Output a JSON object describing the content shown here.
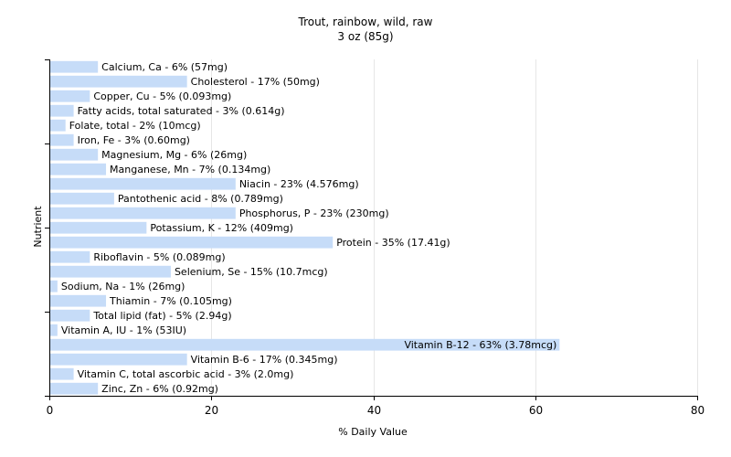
{
  "chart_data": {
    "type": "bar",
    "orientation": "horizontal",
    "title": "Trout, rainbow, wild, raw",
    "subtitle": "3 oz (85g)",
    "xlabel": "% Daily Value",
    "ylabel": "Nutrient",
    "xlim": [
      0,
      80
    ],
    "xticks": [
      0,
      20,
      40,
      60,
      80
    ],
    "grid": "vertical",
    "bar_color": "#c6dcf8",
    "categories": [
      "Calcium, Ca",
      "Cholesterol",
      "Copper, Cu",
      "Fatty acids, total saturated",
      "Folate, total",
      "Iron, Fe",
      "Magnesium, Mg",
      "Manganese, Mn",
      "Niacin",
      "Pantothenic acid",
      "Phosphorus, P",
      "Potassium, K",
      "Protein",
      "Riboflavin",
      "Selenium, Se",
      "Sodium, Na",
      "Thiamin",
      "Total lipid (fat)",
      "Vitamin A, IU",
      "Vitamin B-12",
      "Vitamin B-6",
      "Vitamin C, total ascorbic acid",
      "Zinc, Zn"
    ],
    "values": [
      6,
      17,
      5,
      3,
      2,
      3,
      6,
      7,
      23,
      8,
      23,
      12,
      35,
      5,
      15,
      1,
      7,
      5,
      1,
      63,
      17,
      3,
      6
    ],
    "labels": [
      "Calcium, Ca - 6% (57mg)",
      "Cholesterol - 17% (50mg)",
      "Copper, Cu - 5% (0.093mg)",
      "Fatty acids, total saturated - 3% (0.614g)",
      "Folate, total - 2% (10mcg)",
      "Iron, Fe - 3% (0.60mg)",
      "Magnesium, Mg - 6% (26mg)",
      "Manganese, Mn - 7% (0.134mg)",
      "Niacin - 23% (4.576mg)",
      "Pantothenic acid - 8% (0.789mg)",
      "Phosphorus, P - 23% (230mg)",
      "Potassium, K - 12% (409mg)",
      "Protein - 35% (17.41g)",
      "Riboflavin - 5% (0.089mg)",
      "Selenium, Se - 15% (10.7mcg)",
      "Sodium, Na - 1% (26mg)",
      "Thiamin - 7% (0.105mg)",
      "Total lipid (fat) - 5% (2.94g)",
      "Vitamin A, IU - 1% (53IU)",
      "Vitamin B-12 - 63% (3.78mcg)",
      "Vitamin B-6 - 17% (0.345mg)",
      "Vitamin C, total ascorbic acid - 3% (2.0mg)",
      "Zinc, Zn - 6% (0.92mg)"
    ]
  }
}
